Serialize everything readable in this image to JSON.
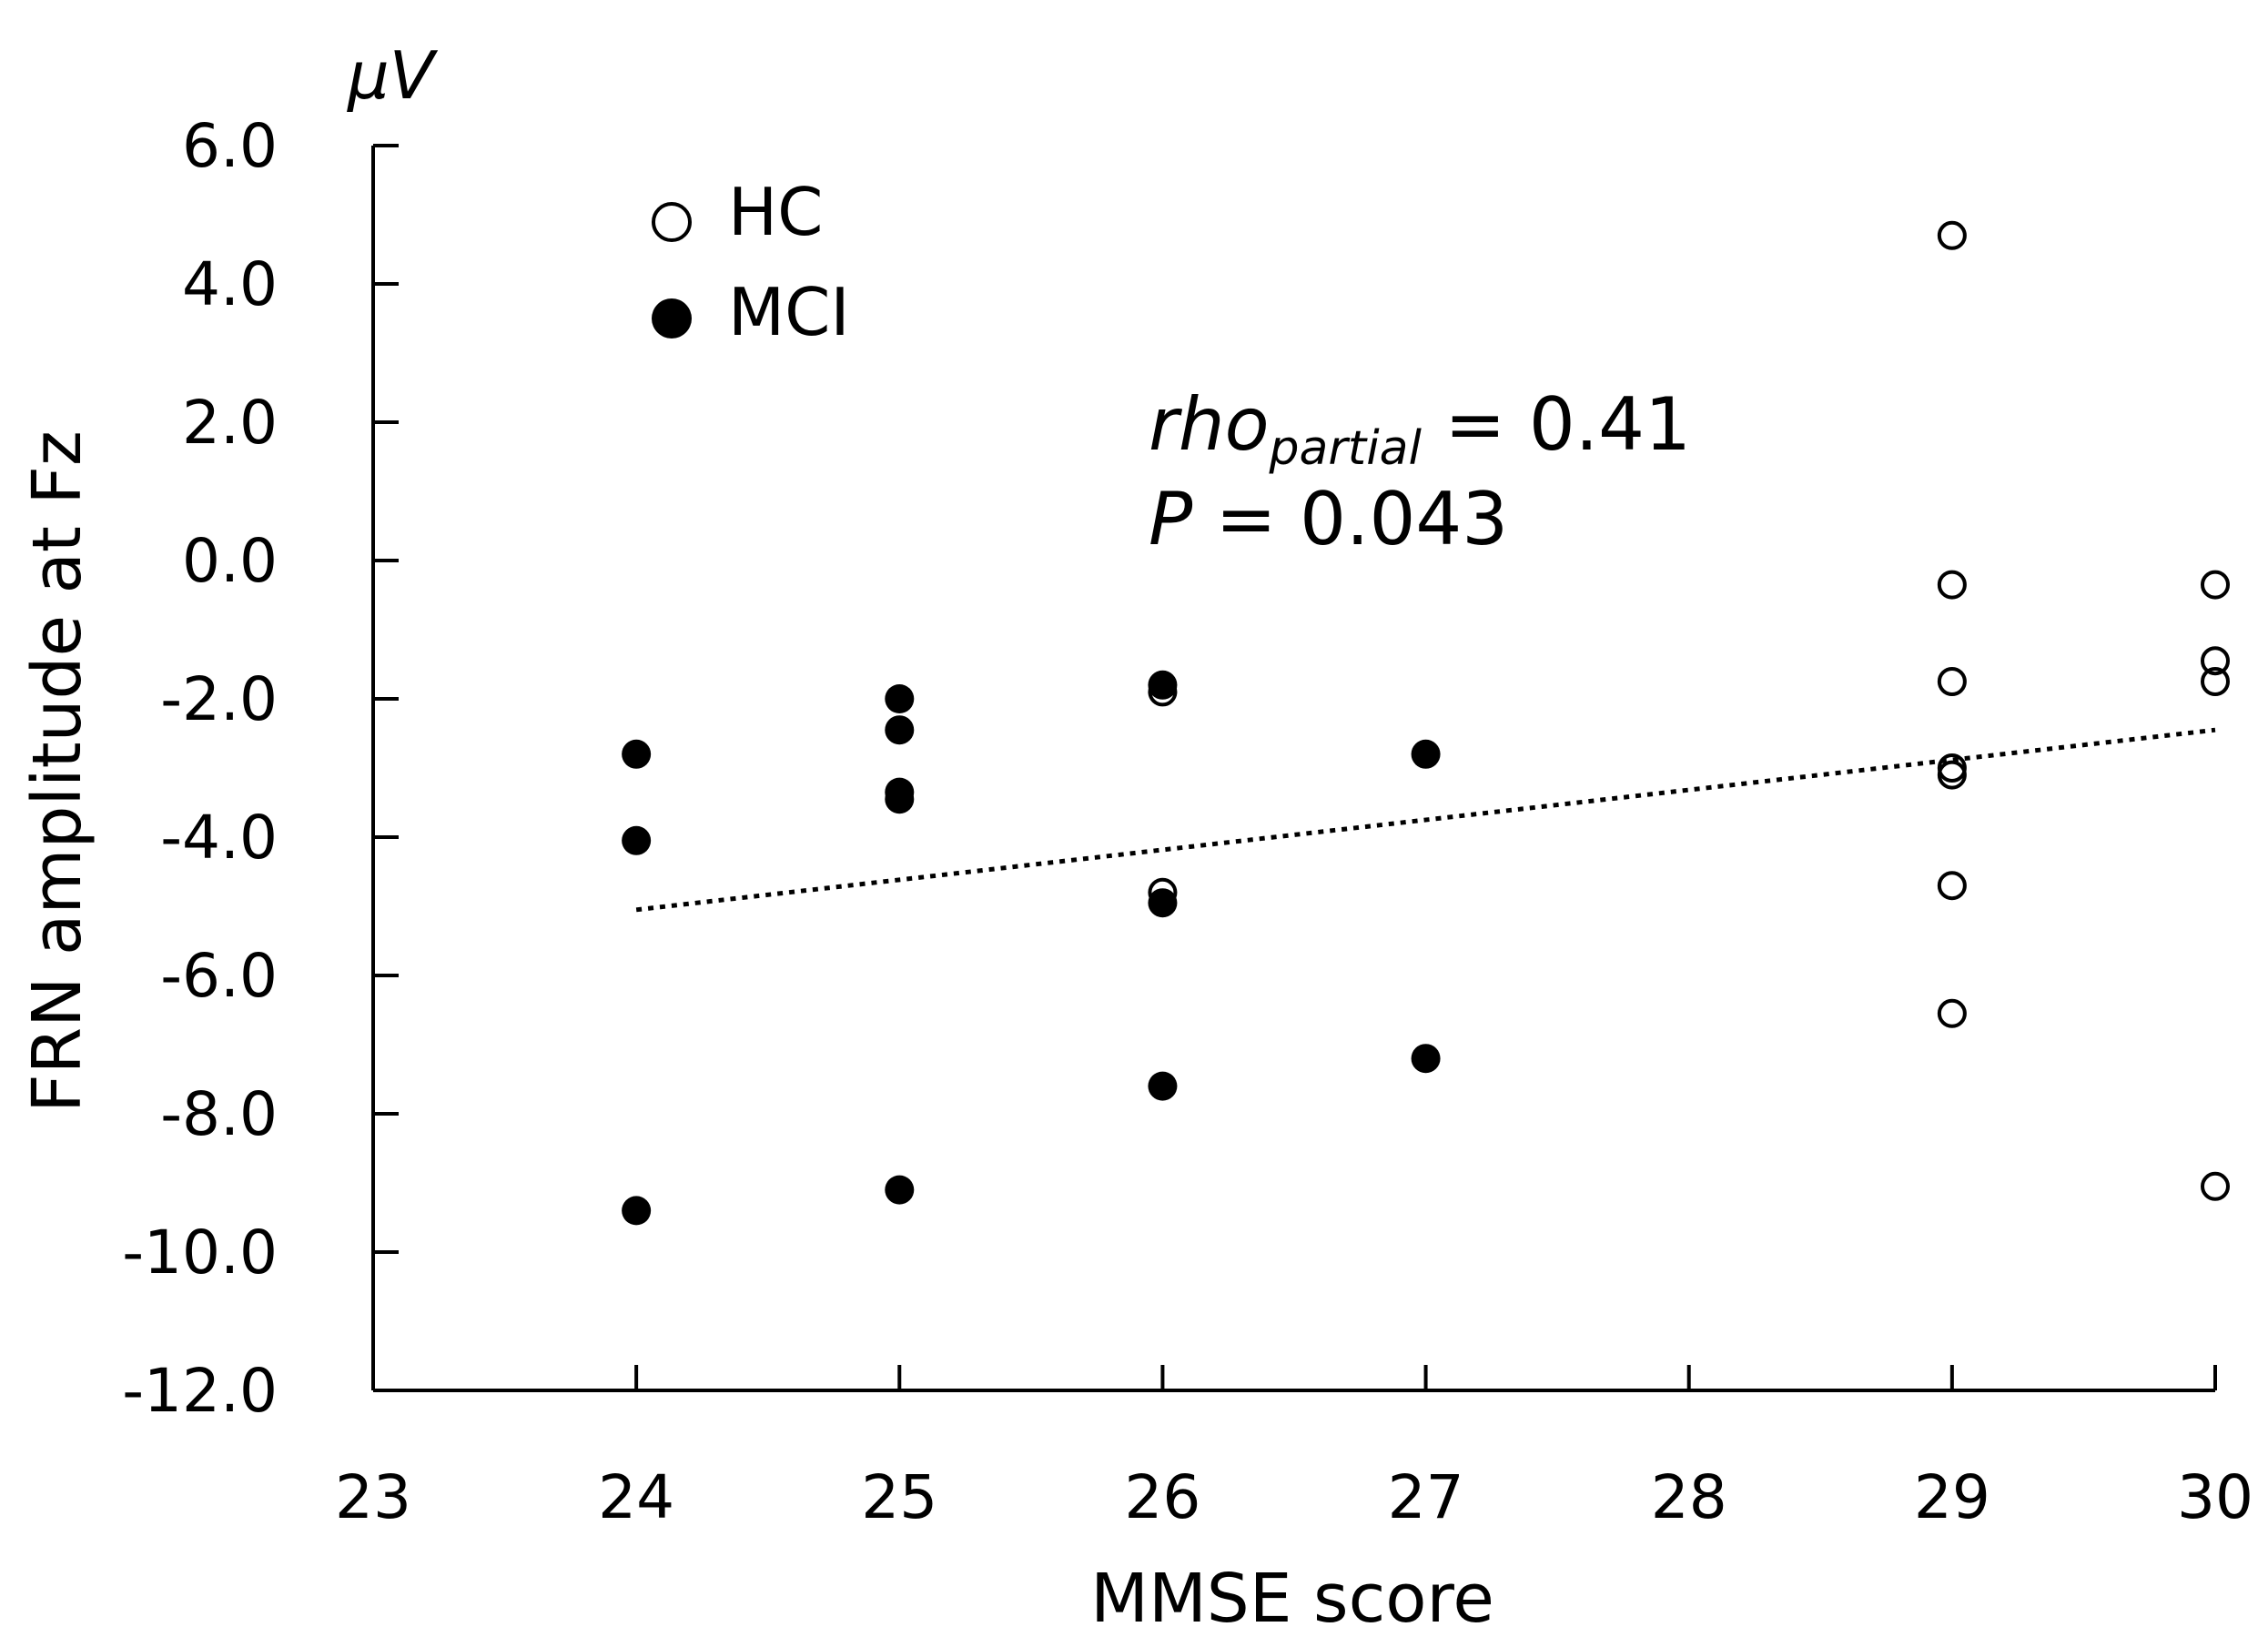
{
  "chart_data": {
    "type": "scatter",
    "title": "",
    "xlabel": "MMSE score",
    "ylabel": "FRN amplitude at Fz",
    "y_unit": "μV",
    "xlim": [
      23,
      30
    ],
    "ylim": [
      -12,
      6
    ],
    "x_ticks": [
      "23",
      "24",
      "25",
      "26",
      "27",
      "28",
      "29",
      "30"
    ],
    "y_ticks": [
      "6.0",
      "4.0",
      "2.0",
      "0.0",
      "-2.0",
      "-4.0",
      "-6.0",
      "-8.0",
      "-10.0",
      "-12.0"
    ],
    "grid": false,
    "legend_position": "top-left",
    "series": [
      {
        "name": "HC",
        "marker": "open-circle",
        "color": "#000000",
        "points": [
          [
            26,
            -1.9
          ],
          [
            26,
            -4.8
          ],
          [
            29,
            4.7
          ],
          [
            29,
            -0.35
          ],
          [
            29,
            -1.75
          ],
          [
            29,
            -3.0
          ],
          [
            29,
            -3.1
          ],
          [
            29,
            -4.7
          ],
          [
            29,
            -6.55
          ],
          [
            30,
            -0.35
          ],
          [
            30,
            -1.45
          ],
          [
            30,
            -1.75
          ],
          [
            30,
            -9.05
          ]
        ]
      },
      {
        "name": "MCI",
        "marker": "filled-circle",
        "color": "#000000",
        "points": [
          [
            24,
            -2.8
          ],
          [
            24,
            -4.05
          ],
          [
            24,
            -9.4
          ],
          [
            25,
            -2.0
          ],
          [
            25,
            -2.45
          ],
          [
            25,
            -3.35
          ],
          [
            25,
            -3.45
          ],
          [
            25,
            -9.1
          ],
          [
            26,
            -1.8
          ],
          [
            26,
            -4.95
          ],
          [
            26,
            -7.6
          ],
          [
            27,
            -2.8
          ],
          [
            27,
            -7.2
          ]
        ]
      }
    ],
    "trendline": {
      "style": "dotted",
      "x": [
        24,
        30
      ],
      "y": [
        -5.05,
        -2.45
      ]
    },
    "annotations": {
      "rho_symbol": "rho",
      "rho_subscript": "partial",
      "rho_value": " = 0.41",
      "p_symbol": "P",
      "p_value": " = 0.043"
    }
  }
}
